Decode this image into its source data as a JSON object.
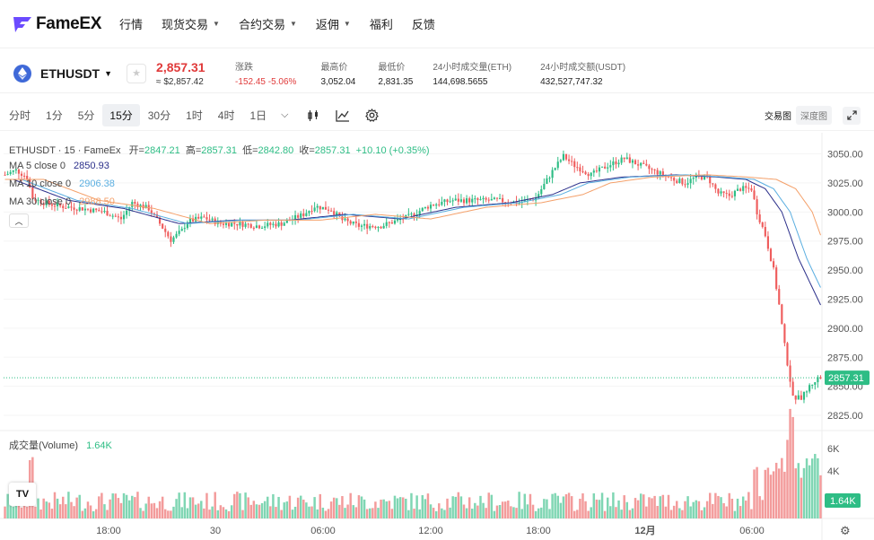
{
  "nav": {
    "logo_text": "FameEX",
    "items": [
      {
        "label": "行情",
        "dropdown": false
      },
      {
        "label": "现货交易",
        "dropdown": true
      },
      {
        "label": "合约交易",
        "dropdown": true
      },
      {
        "label": "返佣",
        "dropdown": true
      },
      {
        "label": "福利",
        "dropdown": false
      },
      {
        "label": "反馈",
        "dropdown": false
      }
    ]
  },
  "ticker": {
    "symbol": "ETHUSDT",
    "price": "2,857.31",
    "price_usd": "≈ $2,857.42",
    "stats": [
      {
        "label": "涨跌",
        "value": "-152.45 -5.06%",
        "negative": true
      },
      {
        "label": "最高价",
        "value": "3,052.04",
        "negative": false
      },
      {
        "label": "最低价",
        "value": "2,831.35",
        "negative": false
      },
      {
        "label": "24小时成交量(ETH)",
        "value": "144,698.5655",
        "negative": false
      },
      {
        "label": "24小时成交额(USDT)",
        "value": "432,527,747.32",
        "negative": false
      }
    ]
  },
  "toolbar": {
    "timeframes": [
      "分时",
      "1分",
      "5分",
      "15分",
      "30分",
      "1时",
      "4时",
      "1日"
    ],
    "active_timeframe": "15分",
    "views": [
      "交易图",
      "深度图"
    ],
    "active_view": "交易图"
  },
  "legend": {
    "title": "ETHUSDT · 15 · FameEx",
    "open_label": "开=",
    "open": "2847.21",
    "high_label": "高=",
    "high": "2857.31",
    "low_label": "低=",
    "low": "2842.80",
    "close_label": "收=",
    "close": "2857.31",
    "change": "+10.10 (+0.35%)",
    "ma5_label": "MA 5 close 0",
    "ma5": "2850.93",
    "ma10_label": "MA 10 close 0",
    "ma10": "2906.38",
    "ma30_label": "MA 30 close 0",
    "ma30": "2988.50",
    "volume_label": "成交量(Volume)",
    "volume": "1.64K"
  },
  "colors": {
    "up": "#2ebd85",
    "down": "#ef5d5d",
    "ma5": "#2b2f8a",
    "ma10": "#5aaee0",
    "ma30": "#f4a06a"
  },
  "chart_data": {
    "type": "candlestick",
    "title": "ETHUSDT · 15 · FameEx",
    "price_axis_ticks": [
      3050,
      3025,
      3000,
      2975,
      2950,
      2925,
      2900,
      2875,
      2850,
      2825
    ],
    "price_axis_labels": [
      "3050.00",
      "3025.00",
      "3000.00",
      "2975.00",
      "2950.00",
      "2925.00",
      "2900.00",
      "2875.00",
      "2850.00",
      "2825.00"
    ],
    "ylim": [
      2815,
      3062
    ],
    "current_price_label": "2857.31",
    "volume_axis_labels": [
      "6K",
      "4K"
    ],
    "volume_current_label": "1.64K",
    "time_axis_labels": [
      "18:00",
      "30",
      "06:00",
      "12:00",
      "18:00",
      "12月",
      "06:00"
    ],
    "price_path": [
      [
        0,
        3032
      ],
      [
        4,
        3036
      ],
      [
        8,
        3030
      ],
      [
        10,
        3012
      ],
      [
        14,
        3008
      ],
      [
        20,
        3005
      ],
      [
        28,
        3003
      ],
      [
        36,
        3000
      ],
      [
        42,
        2994
      ],
      [
        46,
        3008
      ],
      [
        52,
        3003
      ],
      [
        56,
        2990
      ],
      [
        60,
        2976
      ],
      [
        64,
        2984
      ],
      [
        66,
        2992
      ],
      [
        72,
        2995
      ],
      [
        78,
        2990
      ],
      [
        84,
        2990
      ],
      [
        92,
        2988
      ],
      [
        100,
        2990
      ],
      [
        108,
        2998
      ],
      [
        112,
        3005
      ],
      [
        118,
        3002
      ],
      [
        122,
        2993
      ],
      [
        128,
        2988
      ],
      [
        136,
        2988
      ],
      [
        146,
        2996
      ],
      [
        154,
        3006
      ],
      [
        162,
        3010
      ],
      [
        170,
        3010
      ],
      [
        178,
        3010
      ],
      [
        186,
        3008
      ],
      [
        192,
        3012
      ],
      [
        198,
        3035
      ],
      [
        202,
        3048
      ],
      [
        206,
        3040
      ],
      [
        212,
        3032
      ],
      [
        218,
        3040
      ],
      [
        224,
        3046
      ],
      [
        230,
        3040
      ],
      [
        236,
        3034
      ],
      [
        242,
        3028
      ],
      [
        246,
        3025
      ],
      [
        250,
        3030
      ],
      [
        254,
        3030
      ],
      [
        258,
        3016
      ],
      [
        262,
        3014
      ],
      [
        266,
        3020
      ],
      [
        270,
        3020
      ],
      [
        272,
        3000
      ],
      [
        275,
        2980
      ],
      [
        278,
        2950
      ],
      [
        280,
        2920
      ],
      [
        282,
        2885
      ],
      [
        285,
        2840
      ],
      [
        288,
        2840
      ],
      [
        291,
        2850
      ],
      [
        294,
        2857
      ]
    ],
    "ma_path": [
      [
        0,
        3028
      ],
      [
        20,
        3010
      ],
      [
        40,
        3003
      ],
      [
        60,
        2990
      ],
      [
        80,
        2993
      ],
      [
        100,
        2993
      ],
      [
        120,
        2998
      ],
      [
        140,
        2994
      ],
      [
        160,
        3004
      ],
      [
        180,
        3008
      ],
      [
        195,
        3015
      ],
      [
        205,
        3025
      ],
      [
        220,
        3030
      ],
      [
        240,
        3032
      ],
      [
        255,
        3030
      ],
      [
        265,
        3028
      ],
      [
        272,
        3020
      ],
      [
        278,
        3000
      ],
      [
        284,
        2960
      ],
      [
        290,
        2930
      ],
      [
        294,
        2910
      ]
    ],
    "ma_lag": [
      [
        3,
        0
      ],
      [
        6,
        0
      ],
      [
        14,
        0
      ]
    ],
    "series": [
      {
        "name": "MA 5 close 0",
        "last": 2850.93
      },
      {
        "name": "MA 10 close 0",
        "last": 2906.38
      },
      {
        "name": "MA 30 close 0",
        "last": 2988.5
      }
    ]
  }
}
